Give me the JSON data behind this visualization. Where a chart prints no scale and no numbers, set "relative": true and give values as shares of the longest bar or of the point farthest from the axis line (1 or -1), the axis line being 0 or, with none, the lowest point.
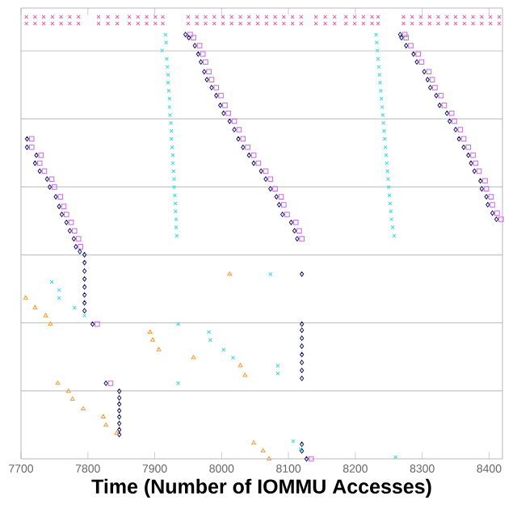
{
  "chart_data": {
    "type": "scatter",
    "xlabel": "Time (Number of IOMMU Accesses)",
    "relative": true,
    "grid": "y",
    "xlim": [
      7700,
      8420
    ],
    "xticks": [
      7700,
      7800,
      7900,
      8000,
      8100,
      8200,
      8300,
      8400
    ],
    "series": [
      {
        "color": "#f0609a",
        "marker": "cross",
        "x": [
          7708,
          7721,
          7734,
          7747,
          7760,
          7773,
          7786,
          7816,
          7830,
          7844,
          7862,
          7875,
          7888,
          7901,
          7912,
          7950,
          7963,
          7976,
          7989,
          8002,
          8015,
          8028,
          8041,
          8054,
          8067,
          8080,
          8093,
          8106,
          8119,
          8141,
          8155,
          8169,
          8186,
          8199,
          8212,
          8225,
          8234,
          8272,
          8285,
          8298,
          8311,
          8324,
          8337,
          8350,
          8363,
          8376,
          8389,
          8402,
          8415,
          7708,
          7721,
          7734,
          7747,
          7760,
          7773,
          7786,
          7816,
          7830,
          7844,
          7862,
          7875,
          7888,
          7901,
          7912,
          7950,
          7963,
          7976,
          7989,
          8002,
          8015,
          8028,
          8041,
          8054,
          8067,
          8080,
          8093,
          8106,
          8119,
          8141,
          8155,
          8169,
          8186,
          8199,
          8212,
          8225,
          8234,
          8272,
          8285,
          8298,
          8311,
          8324,
          8337,
          8350,
          8363,
          8376,
          8389,
          8402,
          8415
        ],
        "values": [
          1,
          1,
          1,
          1,
          1,
          1,
          1,
          1,
          1,
          1,
          1,
          1,
          1,
          1,
          1,
          1,
          1,
          1,
          1,
          1,
          1,
          1,
          1,
          1,
          1,
          1,
          1,
          1,
          1,
          1,
          1,
          1,
          1,
          1,
          1,
          1,
          1,
          1,
          1,
          1,
          1,
          1,
          1,
          1,
          1,
          1,
          1,
          1,
          1,
          0.985,
          0.985,
          0.985,
          0.985,
          0.985,
          0.985,
          0.985,
          0.985,
          0.985,
          0.985,
          0.985,
          0.985,
          0.985,
          0.985,
          0.985,
          0.985,
          0.985,
          0.985,
          0.985,
          0.985,
          0.985,
          0.985,
          0.985,
          0.985,
          0.985,
          0.985,
          0.985,
          0.985,
          0.985,
          0.985,
          0.985,
          0.985,
          0.985,
          0.985,
          0.985,
          0.985,
          0.985,
          0.985,
          0.985,
          0.985,
          0.985,
          0.985,
          0.985,
          0.985,
          0.985,
          0.985,
          0.985,
          0.985,
          0.985
        ]
      },
      {
        "color": "#cc66ee",
        "marker": "square",
        "x": [
          7716,
          7716,
          7730,
          7728,
          7735,
          7746,
          7750,
          7759,
          7764,
          7768,
          7775,
          7780,
          7786,
          7789,
          7814,
          7834,
          7953,
          7958,
          7967,
          7972,
          7976,
          7981,
          7985,
          7992,
          7999,
          8005,
          8010,
          8019,
          8026,
          8032,
          8039,
          8048,
          8055,
          8066,
          8073,
          8080,
          8089,
          8093,
          8098,
          8111,
          8116,
          8120,
          8134,
          8274,
          8276,
          8283,
          8294,
          8299,
          8310,
          8315,
          8319,
          8328,
          8333,
          8344,
          8348,
          8357,
          8362,
          8369,
          8376,
          8380,
          8385,
          8394,
          8396,
          8403,
          8405,
          8412,
          8418
        ],
        "values": [
          0.724,
          0.705,
          0.687,
          0.669,
          0.651,
          0.633,
          0.615,
          0.593,
          0.571,
          0.553,
          0.535,
          0.516,
          0.498,
          0.48,
          0.305,
          0.171,
          0.96,
          0.953,
          0.935,
          0.916,
          0.898,
          0.876,
          0.858,
          0.84,
          0.822,
          0.8,
          0.782,
          0.764,
          0.745,
          0.724,
          0.705,
          0.687,
          0.669,
          0.651,
          0.633,
          0.611,
          0.593,
          0.575,
          0.553,
          0.535,
          0.516,
          0.498,
          0,
          0.96,
          0.953,
          0.935,
          0.916,
          0.898,
          0.876,
          0.858,
          0.84,
          0.822,
          0.8,
          0.782,
          0.764,
          0.745,
          0.724,
          0.705,
          0.687,
          0.669,
          0.651,
          0.629,
          0.611,
          0.593,
          0.575,
          0.556,
          0.542
        ]
      },
      {
        "color": "#1a1a66",
        "marker": "diamond",
        "x": [
          7709,
          7709,
          7723,
          7721,
          7728,
          7739,
          7743,
          7752,
          7757,
          7761,
          7768,
          7773,
          7779,
          7782,
          7788,
          7795,
          7795,
          7795,
          7795,
          7795,
          7795,
          7795,
          7795,
          7807,
          7827,
          7847,
          7847,
          7847,
          7847,
          7847,
          7847,
          7847,
          7847,
          7946,
          7951,
          7960,
          7965,
          7969,
          7974,
          7978,
          7985,
          7992,
          7998,
          8003,
          8012,
          8019,
          8025,
          8032,
          8041,
          8048,
          8059,
          8066,
          8073,
          8082,
          8086,
          8091,
          8104,
          8109,
          8113,
          8120,
          8120,
          8120,
          8120,
          8120,
          8120,
          8120,
          8120,
          8120,
          8120,
          8120,
          8127,
          8267,
          8269,
          8276,
          8287,
          8292,
          8303,
          8308,
          8312,
          8321,
          8326,
          8337,
          8341,
          8350,
          8355,
          8362,
          8369,
          8373,
          8378,
          8387,
          8389,
          8396,
          8398,
          8405,
          8411
        ],
        "values": [
          0.724,
          0.705,
          0.687,
          0.669,
          0.651,
          0.633,
          0.615,
          0.593,
          0.571,
          0.553,
          0.535,
          0.516,
          0.498,
          0.48,
          0.469,
          0.462,
          0.444,
          0.425,
          0.407,
          0.389,
          0.371,
          0.353,
          0.335,
          0.305,
          0.171,
          0.153,
          0.138,
          0.124,
          0.109,
          0.095,
          0.08,
          0.066,
          0.055,
          0.96,
          0.953,
          0.935,
          0.916,
          0.898,
          0.876,
          0.858,
          0.84,
          0.822,
          0.8,
          0.782,
          0.764,
          0.745,
          0.724,
          0.705,
          0.687,
          0.669,
          0.651,
          0.633,
          0.611,
          0.593,
          0.575,
          0.553,
          0.535,
          0.516,
          0.498,
          0.418,
          0.305,
          0.291,
          0.273,
          0.255,
          0.236,
          0.218,
          0.2,
          0.182,
          0.033,
          0.018,
          0,
          0.96,
          0.953,
          0.935,
          0.916,
          0.898,
          0.876,
          0.858,
          0.84,
          0.822,
          0.8,
          0.782,
          0.764,
          0.745,
          0.724,
          0.705,
          0.687,
          0.669,
          0.651,
          0.629,
          0.611,
          0.593,
          0.575,
          0.556,
          0.542
        ]
      },
      {
        "color": "#33dddd",
        "marker": "cross",
        "x": [
          7916,
          7917,
          7911,
          7918,
          7919,
          7920,
          7920,
          7921,
          7922,
          7922,
          7923,
          7924,
          7925,
          7925,
          7926,
          7927,
          7927,
          7928,
          7929,
          7929,
          7930,
          7931,
          7931,
          7932,
          7932,
          7933,
          7935,
          7935,
          8231,
          8232,
          8233,
          8234,
          8235,
          8236,
          8237,
          8238,
          8239,
          8240,
          8241,
          8242,
          8243,
          8244,
          8245,
          8246,
          8247,
          8248,
          8249,
          8250,
          8251,
          8252,
          8253,
          8254,
          8256,
          8258,
          7746,
          7757,
          7757,
          7780,
          7795,
          7981,
          7983,
          8003,
          8017,
          8073,
          8084,
          8084,
          8107,
          8118,
          8260
        ],
        "values": [
          0.96,
          0.942,
          0.924,
          0.905,
          0.887,
          0.869,
          0.851,
          0.833,
          0.815,
          0.796,
          0.778,
          0.76,
          0.742,
          0.724,
          0.705,
          0.687,
          0.669,
          0.651,
          0.633,
          0.615,
          0.596,
          0.578,
          0.56,
          0.542,
          0.524,
          0.505,
          0.305,
          0.171,
          0.96,
          0.942,
          0.924,
          0.905,
          0.887,
          0.869,
          0.851,
          0.833,
          0.815,
          0.796,
          0.778,
          0.76,
          0.742,
          0.724,
          0.705,
          0.687,
          0.669,
          0.651,
          0.633,
          0.615,
          0.596,
          0.578,
          0.56,
          0.542,
          0.524,
          0.505,
          0.4,
          0.382,
          0.364,
          0.342,
          0.324,
          0.287,
          0.269,
          0.247,
          0.229,
          0.418,
          0.211,
          0.193,
          0.04,
          0.022,
          0.004
        ]
      },
      {
        "color": "#ff9933",
        "marker": "triangle",
        "x": [
          7707,
          7721,
          7737,
          7744,
          7755,
          7771,
          7777,
          7793,
          7823,
          7827,
          7843,
          7893,
          7897,
          7906,
          7958,
          8012,
          8028,
          8035,
          8048,
          8062,
          8071
        ],
        "values": [
          0.364,
          0.342,
          0.324,
          0.305,
          0.171,
          0.153,
          0.135,
          0.113,
          0.095,
          0.076,
          0.058,
          0.287,
          0.269,
          0.247,
          0.229,
          0.418,
          0.211,
          0.189,
          0.036,
          0.018,
          0
        ]
      }
    ]
  }
}
